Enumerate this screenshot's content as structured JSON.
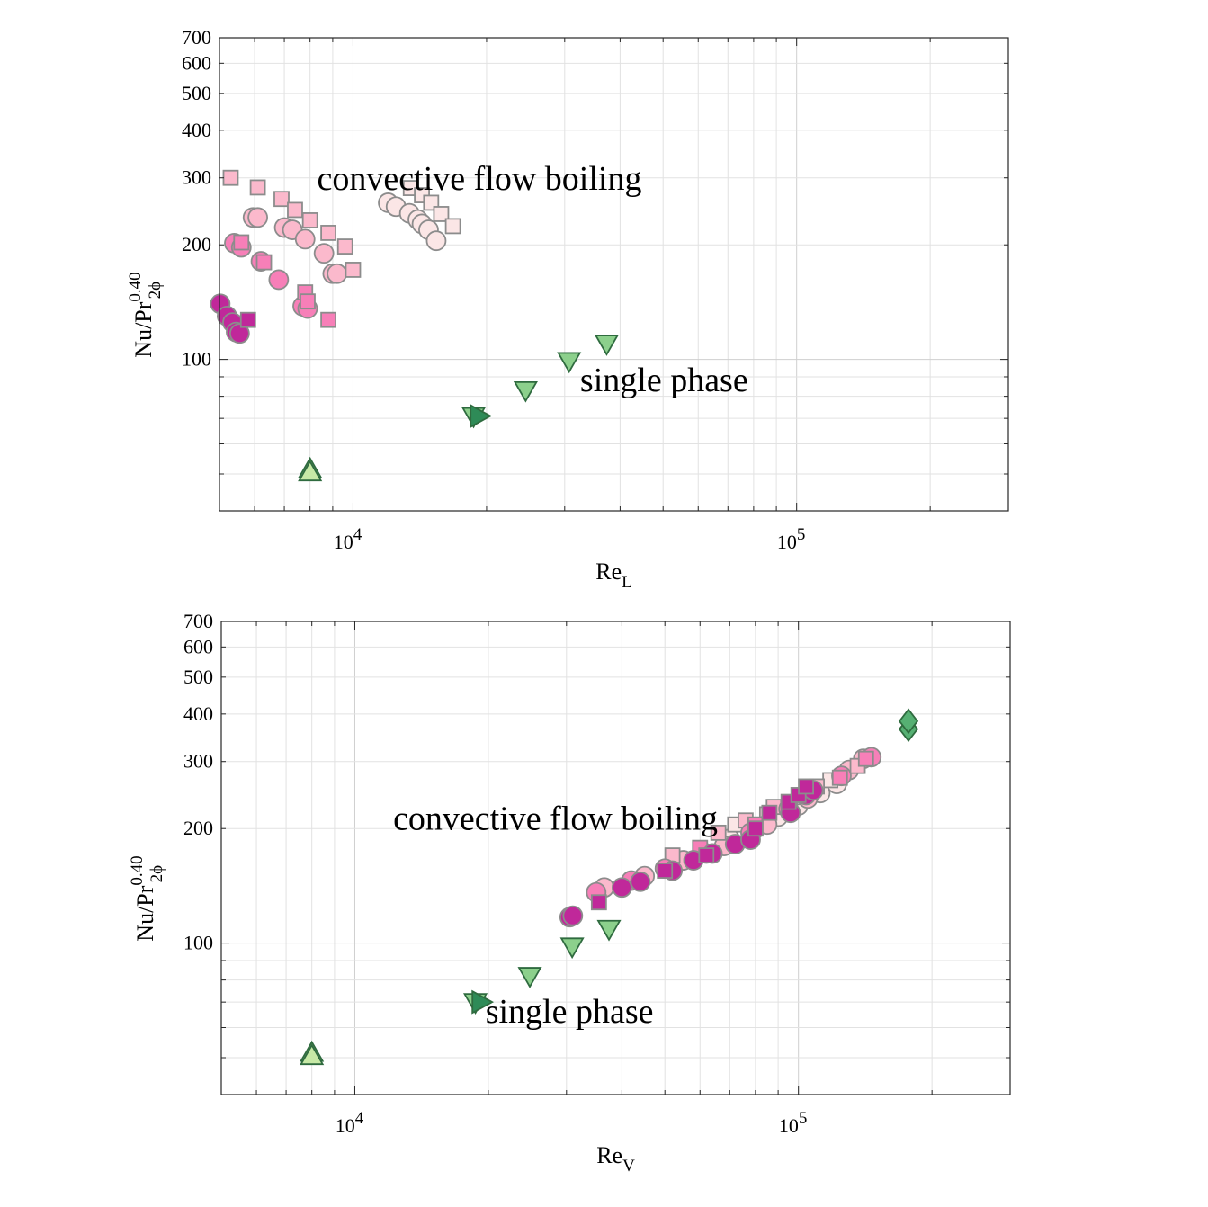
{
  "colors": {
    "magenta": "#c0289a",
    "pink": "#f77fb8",
    "light_pink": "#fbb9cc",
    "pale_pink": "#fbe6e6",
    "dark_green": "#2e8b57",
    "mid_green": "#8cd08c",
    "light_green": "#c7e9a6",
    "diamond_green": "#56b073",
    "grid": "#e2e2e2",
    "axis": "#262626",
    "marker_edge": "#8c8c8c"
  },
  "chart_data": [
    {
      "type": "scatter",
      "xscale": "log",
      "yscale": "log",
      "xlim": [
        5000,
        300000
      ],
      "ylim": [
        40,
        700
      ],
      "grid": true,
      "xlabel": {
        "main": "Re",
        "sub": "L"
      },
      "ylabel": {
        "main": "Nu/Pr",
        "sub": "2ϕ",
        "sup": "0.40"
      },
      "xticks": [
        {
          "value": 10000,
          "base": "10",
          "exp": "4"
        },
        {
          "value": 100000,
          "base": "10",
          "exp": "5"
        }
      ],
      "yticks": [
        {
          "value": 100,
          "label": "100"
        },
        {
          "value": 200,
          "label": "200"
        },
        {
          "value": 300,
          "label": "300"
        },
        {
          "value": 400,
          "label": "400"
        },
        {
          "value": 500,
          "label": "500"
        },
        {
          "value": 600,
          "label": "600"
        },
        {
          "value": 700,
          "label": "700"
        }
      ],
      "annotations": [
        {
          "text": "convective flow boiling",
          "x": 8300,
          "y": 298
        },
        {
          "text": "single phase",
          "x": 32500,
          "y": 88
        }
      ],
      "series": [
        {
          "marker": "circle",
          "color": "magenta",
          "points": [
            [
              5020,
              140
            ],
            [
              5200,
              130
            ],
            [
              5350,
              125
            ],
            [
              5450,
              118
            ],
            [
              5550,
              117
            ]
          ]
        },
        {
          "marker": "square",
          "color": "magenta",
          "points": [
            [
              5800,
              127
            ]
          ]
        },
        {
          "marker": "circle",
          "color": "pink",
          "points": [
            [
              5400,
              202
            ],
            [
              5600,
              197
            ],
            [
              6200,
              181
            ],
            [
              6800,
              162
            ],
            [
              7700,
              138
            ],
            [
              7900,
              136
            ]
          ]
        },
        {
          "marker": "square",
          "color": "pink",
          "points": [
            [
              5600,
              203
            ],
            [
              6300,
              180
            ],
            [
              7800,
              150
            ],
            [
              7900,
              142
            ],
            [
              8800,
              127
            ]
          ]
        },
        {
          "marker": "circle",
          "color": "light_pink",
          "points": [
            [
              5950,
              236
            ],
            [
              6100,
              236
            ],
            [
              7000,
              222
            ],
            [
              7300,
              219
            ],
            [
              7800,
              207
            ],
            [
              8600,
              190
            ],
            [
              9000,
              168
            ],
            [
              9200,
              168
            ]
          ]
        },
        {
          "marker": "square",
          "color": "light_pink",
          "points": [
            [
              5300,
              300
            ],
            [
              6100,
              283
            ],
            [
              6900,
              264
            ],
            [
              7400,
              247
            ],
            [
              8000,
              232
            ],
            [
              8800,
              215
            ],
            [
              9600,
              198
            ],
            [
              10000,
              172
            ]
          ]
        },
        {
          "marker": "circle",
          "color": "pale_pink",
          "points": [
            [
              12000,
              258
            ],
            [
              12500,
              252
            ],
            [
              13400,
              242
            ],
            [
              14000,
              233
            ],
            [
              14300,
              227
            ],
            [
              14800,
              219
            ],
            [
              15400,
              205
            ]
          ]
        },
        {
          "marker": "square",
          "color": "pale_pink",
          "points": [
            [
              13500,
              282
            ],
            [
              14300,
              270
            ],
            [
              15000,
              258
            ],
            [
              15800,
              241
            ],
            [
              16800,
              224
            ]
          ]
        },
        {
          "marker": "triangle-down",
          "color": "mid_green",
          "points": [
            [
              18700,
              71
            ],
            [
              24500,
              83
            ],
            [
              30700,
              99
            ],
            [
              37300,
              110
            ]
          ]
        },
        {
          "marker": "triangle-right",
          "color": "dark_green",
          "points": [
            [
              19200,
              71
            ]
          ]
        },
        {
          "marker": "triangle-up",
          "color": "light_green",
          "points": [
            [
              8000,
              51.5
            ],
            [
              8000,
              50.5
            ]
          ]
        }
      ]
    },
    {
      "type": "scatter",
      "xscale": "log",
      "yscale": "log",
      "xlim": [
        5000,
        300000
      ],
      "ylim": [
        40,
        700
      ],
      "grid": true,
      "xlabel": {
        "main": "Re",
        "sub": "V"
      },
      "ylabel": {
        "main": "Nu/Pr",
        "sub": "2ϕ",
        "sup": "0.40"
      },
      "xticks": [
        {
          "value": 10000,
          "base": "10",
          "exp": "4"
        },
        {
          "value": 100000,
          "base": "10",
          "exp": "5"
        }
      ],
      "yticks": [
        {
          "value": 100,
          "label": "100"
        },
        {
          "value": 200,
          "label": "200"
        },
        {
          "value": 300,
          "label": "300"
        },
        {
          "value": 400,
          "label": "400"
        },
        {
          "value": 500,
          "label": "500"
        },
        {
          "value": 600,
          "label": "600"
        },
        {
          "value": 700,
          "label": "700"
        }
      ],
      "annotations": [
        {
          "text": "convective flow boiling",
          "x": 12200,
          "y": 212
        },
        {
          "text": "single phase",
          "x": 19700,
          "y": 66
        }
      ],
      "series": [
        {
          "marker": "circle",
          "color": "pale_pink",
          "points": [
            [
              70000,
              188
            ],
            [
              80000,
              200
            ],
            [
              90000,
              215
            ],
            [
              100000,
              230
            ],
            [
              112000,
              248
            ],
            [
              122000,
              262
            ]
          ]
        },
        {
          "marker": "square",
          "color": "pale_pink",
          "points": [
            [
              72000,
              205
            ],
            [
              85000,
              218
            ],
            [
              103000,
              242
            ],
            [
              118000,
              268
            ]
          ]
        },
        {
          "marker": "circle",
          "color": "light_pink",
          "points": [
            [
              36500,
              140
            ],
            [
              45000,
              150
            ],
            [
              55000,
              165
            ],
            [
              68000,
              180
            ],
            [
              85000,
              205
            ],
            [
              105000,
              240
            ],
            [
              130000,
              285
            ],
            [
              140000,
              305
            ]
          ]
        },
        {
          "marker": "square",
          "color": "light_pink",
          "points": [
            [
              52000,
              170
            ],
            [
              66000,
              195
            ],
            [
              76000,
              210
            ],
            [
              88000,
              228
            ],
            [
              110000,
              258
            ],
            [
              136000,
              292
            ]
          ]
        },
        {
          "marker": "circle",
          "color": "pink",
          "points": [
            [
              35000,
              136
            ],
            [
              42000,
              146
            ],
            [
              50000,
              157
            ],
            [
              62000,
              172
            ],
            [
              78000,
              195
            ],
            [
              95000,
              225
            ],
            [
              125000,
              275
            ],
            [
              146000,
              308
            ]
          ]
        },
        {
          "marker": "square",
          "color": "pink",
          "points": [
            [
              60000,
              178
            ],
            [
              80000,
              205
            ],
            [
              103000,
              245
            ],
            [
              124000,
              272
            ],
            [
              142000,
              305
            ]
          ]
        },
        {
          "marker": "circle",
          "color": "magenta",
          "points": [
            [
              30500,
              117
            ],
            [
              31000,
              118
            ],
            [
              40000,
              140
            ],
            [
              44000,
              145
            ],
            [
              52000,
              155
            ],
            [
              58000,
              165
            ],
            [
              64000,
              172
            ],
            [
              72000,
              182
            ],
            [
              78000,
              187
            ],
            [
              96000,
              220
            ],
            [
              104000,
              245
            ],
            [
              108000,
              252
            ]
          ]
        },
        {
          "marker": "square",
          "color": "magenta",
          "points": [
            [
              35500,
              128
            ],
            [
              50000,
              155
            ],
            [
              62000,
              170
            ],
            [
              80000,
              200
            ],
            [
              86000,
              220
            ],
            [
              95000,
              235
            ],
            [
              100000,
              245
            ],
            [
              104000,
              258
            ]
          ]
        },
        {
          "marker": "diamond",
          "color": "diamond_green",
          "points": [
            [
              177000,
              365
            ],
            [
              177000,
              383
            ]
          ]
        },
        {
          "marker": "triangle-down",
          "color": "mid_green",
          "points": [
            [
              18700,
              70
            ],
            [
              24800,
              82
            ],
            [
              30900,
              98
            ],
            [
              37400,
              109
            ]
          ]
        },
        {
          "marker": "triangle-right",
          "color": "dark_green",
          "points": [
            [
              19200,
              70
            ]
          ]
        },
        {
          "marker": "triangle-up",
          "color": "light_green",
          "points": [
            [
              8000,
              51.5
            ],
            [
              8000,
              50.5
            ]
          ]
        }
      ]
    }
  ]
}
